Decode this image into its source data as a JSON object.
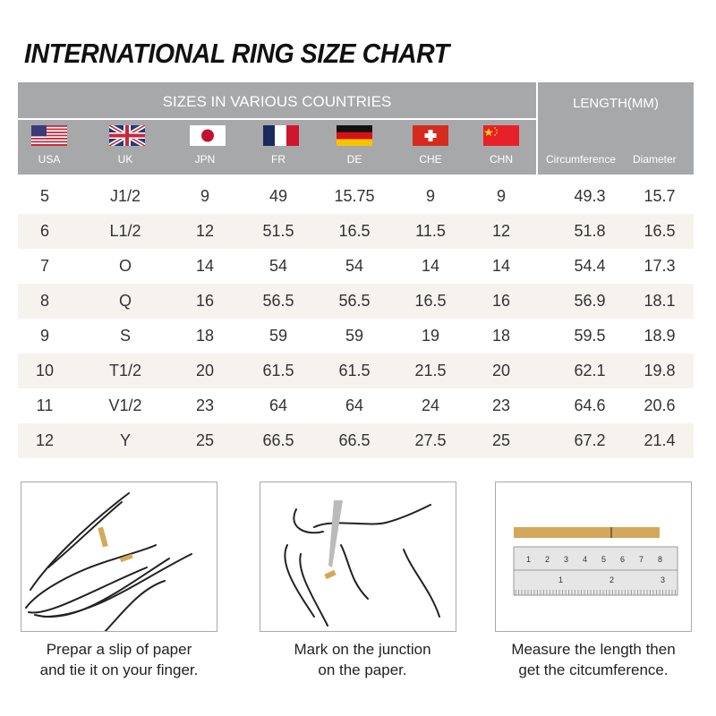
{
  "title": "INTERNATIONAL RING SIZE CHART",
  "header": {
    "group1": "SIZES IN VARIOUS COUNTRIES",
    "group2": "LENGTH(MM)",
    "countries": [
      {
        "code": "USA",
        "flag": "us-flag"
      },
      {
        "code": "UK",
        "flag": "uk-flag"
      },
      {
        "code": "JPN",
        "flag": "japan-flag"
      },
      {
        "code": "FR",
        "flag": "france-flag"
      },
      {
        "code": "DE",
        "flag": "germany-flag"
      },
      {
        "code": "CHE",
        "flag": "switzerland-flag"
      },
      {
        "code": "CHN",
        "flag": "china-flag"
      }
    ],
    "lengths": [
      "Circumference",
      "Diameter"
    ]
  },
  "chart_data": {
    "type": "table",
    "title": "INTERNATIONAL RING SIZE CHART",
    "columns": [
      "USA",
      "UK",
      "JPN",
      "FR",
      "DE",
      "CHE",
      "CHN",
      "Circumference",
      "Diameter"
    ],
    "rows": [
      [
        "5",
        "J1/2",
        "9",
        "49",
        "15.75",
        "9",
        "9",
        "49.3",
        "15.7"
      ],
      [
        "6",
        "L1/2",
        "12",
        "51.5",
        "16.5",
        "11.5",
        "12",
        "51.8",
        "16.5"
      ],
      [
        "7",
        "O",
        "14",
        "54",
        "54",
        "14",
        "14",
        "54.4",
        "17.3"
      ],
      [
        "8",
        "Q",
        "16",
        "56.5",
        "56.5",
        "16.5",
        "16",
        "56.9",
        "18.1"
      ],
      [
        "9",
        "S",
        "18",
        "59",
        "59",
        "19",
        "18",
        "59.5",
        "18.9"
      ],
      [
        "10",
        "T1/2",
        "20",
        "61.5",
        "61.5",
        "21.5",
        "20",
        "62.1",
        "19.8"
      ],
      [
        "11",
        "V1/2",
        "23",
        "64",
        "64",
        "24",
        "23",
        "64.6",
        "20.6"
      ],
      [
        "12",
        "Y",
        "25",
        "66.5",
        "66.5",
        "27.5",
        "25",
        "67.2",
        "21.4"
      ]
    ]
  },
  "colors": {
    "header_bg": "#a7a8aa",
    "alt_row": "#f6f3ef",
    "paper_strip": "#d4a85a"
  },
  "steps": [
    {
      "line1": "Prepar a slip of paper",
      "line2": "and tie it on your finger."
    },
    {
      "line1": "Mark on the junction",
      "line2": "on the paper."
    },
    {
      "line1": "Measure  the length then",
      "line2": "get the citcumference."
    }
  ],
  "ruler": {
    "top_marks": [
      "1",
      "2",
      "3",
      "4",
      "5",
      "6",
      "7",
      "8"
    ],
    "bottom_marks": [
      "1",
      "2",
      "3"
    ]
  }
}
